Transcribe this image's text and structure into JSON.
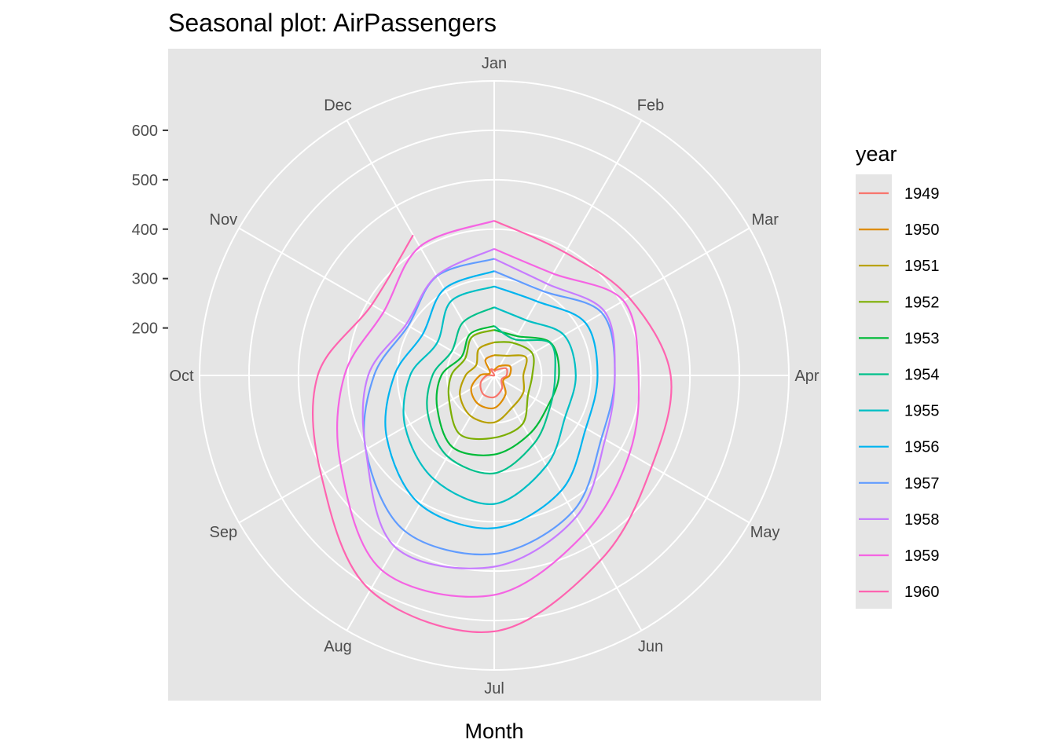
{
  "chart_data": {
    "type": "line",
    "coord": "polar",
    "title": "Seasonal plot: AirPassengers",
    "xlabel": "Month",
    "ylabel": "",
    "categories": [
      "Jan",
      "Feb",
      "Mar",
      "Apr",
      "May",
      "Jun",
      "Jul",
      "Aug",
      "Sep",
      "Oct",
      "Nov",
      "Dec"
    ],
    "y_ticks": [
      200,
      300,
      400,
      500,
      600
    ],
    "ylim": [
      104,
      700
    ],
    "grid": true,
    "background": "#e5e5e5",
    "legend": {
      "title": "year",
      "position": "right"
    },
    "series": [
      {
        "name": "1949",
        "color": "#F8766D",
        "values": [
          112,
          118,
          132,
          129,
          121,
          135,
          148,
          148,
          136,
          119,
          104,
          118
        ]
      },
      {
        "name": "1950",
        "color": "#DE8C00",
        "values": [
          115,
          126,
          141,
          135,
          125,
          149,
          170,
          170,
          158,
          133,
          114,
          140
        ]
      },
      {
        "name": "1951",
        "color": "#B79F00",
        "values": [
          145,
          150,
          178,
          163,
          172,
          178,
          199,
          199,
          184,
          162,
          146,
          166
        ]
      },
      {
        "name": "1952",
        "color": "#7CAE00",
        "values": [
          171,
          180,
          193,
          181,
          183,
          218,
          230,
          242,
          209,
          191,
          172,
          194
        ]
      },
      {
        "name": "1953",
        "color": "#00BA38",
        "values": [
          196,
          196,
          236,
          235,
          229,
          243,
          264,
          272,
          237,
          211,
          180,
          201
        ]
      },
      {
        "name": "1954",
        "color": "#00C08B",
        "values": [
          204,
          188,
          235,
          227,
          234,
          264,
          302,
          293,
          259,
          229,
          203,
          229
        ]
      },
      {
        "name": "1955",
        "color": "#00BFC4",
        "values": [
          242,
          233,
          267,
          269,
          270,
          315,
          364,
          347,
          312,
          274,
          237,
          278
        ]
      },
      {
        "name": "1956",
        "color": "#00B4F0",
        "values": [
          284,
          277,
          317,
          313,
          318,
          374,
          413,
          405,
          355,
          306,
          271,
          306
        ]
      },
      {
        "name": "1957",
        "color": "#619CFF",
        "values": [
          315,
          301,
          356,
          348,
          355,
          422,
          465,
          467,
          404,
          347,
          305,
          336
        ]
      },
      {
        "name": "1958",
        "color": "#C77CFF",
        "values": [
          340,
          318,
          362,
          348,
          363,
          435,
          491,
          505,
          404,
          359,
          310,
          337
        ]
      },
      {
        "name": "1959",
        "color": "#F564E3",
        "values": [
          360,
          342,
          406,
          396,
          420,
          472,
          548,
          559,
          463,
          407,
          362,
          405
        ]
      },
      {
        "name": "1960",
        "color": "#FF64B0",
        "values": [
          417,
          391,
          419,
          461,
          472,
          535,
          622,
          606,
          508,
          461,
          390,
          432
        ]
      }
    ]
  }
}
